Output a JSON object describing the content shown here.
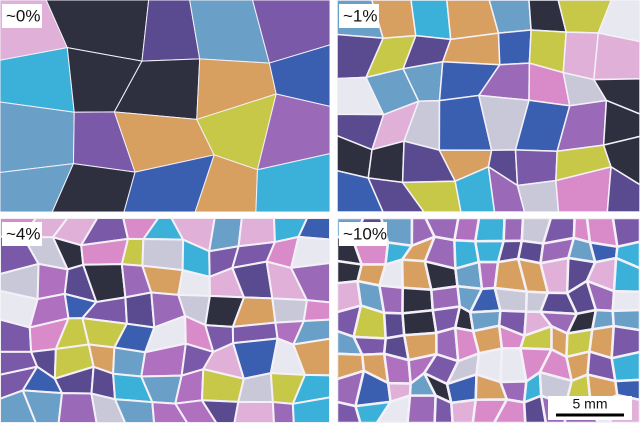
{
  "panels": [
    {
      "label": "~0%"
    },
    {
      "label": "~1%"
    },
    {
      "label": "~4%"
    },
    {
      "label": "~10%"
    }
  ],
  "scale_bar": {
    "label": "5 mm"
  }
}
